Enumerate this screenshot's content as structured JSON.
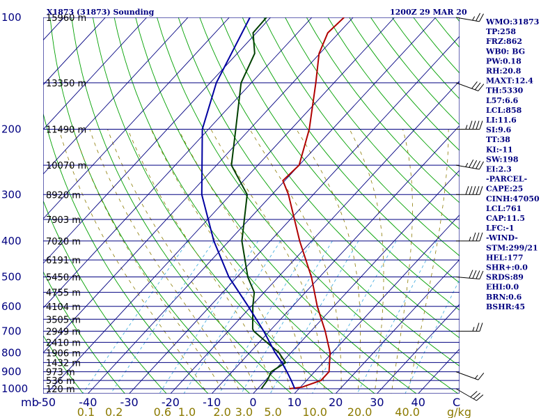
{
  "header": {
    "station": "X1873 (31873) Sounding",
    "time": "1200Z 29 MAR 20"
  },
  "side_panel": [
    "WMO:31873",
    "TP:258",
    "FRZ:862",
    "WB0: BG",
    "PW:0.18",
    "RH:20.8",
    "MAXT:12.4",
    "TH:5330",
    "L57:6.6",
    "LCL:858",
    "LI:11.6",
    "SI:9.6",
    "TT:38",
    "KI:-11",
    "SW:198",
    "EI:2.3",
    "-PARCEL-",
    "CAPE:25",
    "CINH:47050",
    "LCL:761",
    "CAP:11.5",
    "LFC:-1",
    "-WIND-",
    "STM:299/21",
    "HEL:177",
    "SHR+:0.0",
    "SRDS:89",
    "EHI:0.0",
    "BRN:0.6",
    "BSHR:45"
  ],
  "chart_data": {
    "type": "line",
    "chart_kind": "skew-T log-P sounding",
    "pressure_levels": [
      100,
      200,
      300,
      400,
      500,
      600,
      700,
      800,
      900,
      1000
    ],
    "pressure_axis_label": "mb",
    "temperature_ticks": [
      "-50",
      "-40",
      "-30",
      "-20",
      "-10",
      "0",
      "10",
      "20",
      "30",
      "40"
    ],
    "temperature_ticks_values": [
      -50,
      -40,
      -30,
      -20,
      -10,
      0,
      10,
      20,
      30,
      40
    ],
    "mixing_ratio_labels": [
      "0.1",
      "0.2",
      "0.6",
      "1.0",
      "2.0",
      "3.0",
      "5.0",
      "10.0",
      "20.0",
      "40.0"
    ],
    "mixing_ratio_unit": "g/kg",
    "wind_unit_label": "C",
    "heights": [
      {
        "p": 150,
        "label": "13350 m"
      },
      {
        "p": 200,
        "label": "11490 m"
      },
      {
        "p": 250,
        "label": "10070 m"
      },
      {
        "p": 300,
        "label": "8920 m"
      },
      {
        "p": 350,
        "label": "7903 m"
      },
      {
        "p": 400,
        "label": "7020 m"
      },
      {
        "p": 450,
        "label": "6191 m"
      },
      {
        "p": 500,
        "label": "5450 m"
      },
      {
        "p": 550,
        "label": "4755 m"
      },
      {
        "p": 600,
        "label": "4104 m"
      },
      {
        "p": 650,
        "label": "3505 m"
      },
      {
        "p": 700,
        "label": "2949 m"
      },
      {
        "p": 750,
        "label": "2410 m"
      },
      {
        "p": 800,
        "label": "1906 m"
      },
      {
        "p": 850,
        "label": "1432 m"
      },
      {
        "p": 900,
        "label": "973 m"
      },
      {
        "p": 950,
        "label": "536 m"
      },
      {
        "p": 1000,
        "label": "120 m"
      }
    ],
    "top_height_label": "15960 m",
    "series": [
      {
        "kind": "temperature",
        "color": "#b00000",
        "points": [
          {
            "p": 100,
            "t": -62.2
          },
          {
            "p": 110,
            "t": -62.7
          },
          {
            "p": 125,
            "t": -60.2
          },
          {
            "p": 150,
            "t": -54.4
          },
          {
            "p": 200,
            "t": -45.6
          },
          {
            "p": 250,
            "t": -40.0
          },
          {
            "p": 275,
            "t": -40.5
          },
          {
            "p": 300,
            "t": -36.0
          },
          {
            "p": 400,
            "t": -22.9
          },
          {
            "p": 500,
            "t": -12.0
          },
          {
            "p": 600,
            "t": -4.0
          },
          {
            "p": 700,
            "t": 3.5
          },
          {
            "p": 800,
            "t": 9.5
          },
          {
            "p": 900,
            "t": 13.5
          },
          {
            "p": 950,
            "t": 13.5
          },
          {
            "p": 990,
            "t": 10.4
          },
          {
            "p": 1000,
            "t": 7.7
          }
        ]
      },
      {
        "kind": "dewpoint",
        "color": "#004000",
        "points": [
          {
            "p": 100,
            "t": -81.0
          },
          {
            "p": 110,
            "t": -80.8
          },
          {
            "p": 125,
            "t": -75.8
          },
          {
            "p": 150,
            "t": -72.5
          },
          {
            "p": 200,
            "t": -63.4
          },
          {
            "p": 250,
            "t": -56.4
          },
          {
            "p": 300,
            "t": -46.0
          },
          {
            "p": 400,
            "t": -36.9
          },
          {
            "p": 500,
            "t": -27.4
          },
          {
            "p": 550,
            "t": -22.4
          },
          {
            "p": 600,
            "t": -19.6
          },
          {
            "p": 690,
            "t": -14.6
          },
          {
            "p": 700,
            "t": -13.8
          },
          {
            "p": 800,
            "t": -2.9
          },
          {
            "p": 850,
            "t": 0.9
          },
          {
            "p": 900,
            "t": -0.5
          },
          {
            "p": 950,
            "t": 0.5
          },
          {
            "p": 1000,
            "t": 0.9
          }
        ]
      },
      {
        "kind": "parcel",
        "color": "#0000a0",
        "points": [
          {
            "p": 100,
            "t": -85.0
          },
          {
            "p": 150,
            "t": -78.5
          },
          {
            "p": 200,
            "t": -71.5
          },
          {
            "p": 300,
            "t": -57.0
          },
          {
            "p": 400,
            "t": -43.7
          },
          {
            "p": 500,
            "t": -32.0
          },
          {
            "p": 600,
            "t": -20.7
          },
          {
            "p": 700,
            "t": -11.4
          },
          {
            "p": 800,
            "t": -3.8
          },
          {
            "p": 850,
            "t": 0.0
          },
          {
            "p": 900,
            "t": 3.3
          },
          {
            "p": 950,
            "t": 6.3
          },
          {
            "p": 1000,
            "t": 9.0
          }
        ]
      }
    ],
    "wind_barbs": [
      {
        "p": 100,
        "dir": 280,
        "spd": 25
      },
      {
        "p": 150,
        "dir": 290,
        "spd": 30
      },
      {
        "p": 200,
        "dir": 270,
        "spd": 45
      },
      {
        "p": 250,
        "dir": 280,
        "spd": 45
      },
      {
        "p": 300,
        "dir": 270,
        "spd": 50
      },
      {
        "p": 400,
        "dir": 270,
        "spd": 35
      },
      {
        "p": 500,
        "dir": 275,
        "spd": 40
      },
      {
        "p": 700,
        "dir": 270,
        "spd": 25
      },
      {
        "p": 900,
        "dir": 290,
        "spd": 15
      },
      {
        "p": 1000,
        "dir": 300,
        "spd": 30
      }
    ],
    "colors": {
      "frame": "#000080",
      "isobar": "#000080",
      "isotherm": "#000080",
      "dry_adiabat": "#00a000",
      "moist_adiabat": "#8b7a00",
      "mixing_ratio": "#4ab0e0",
      "wind_barb": "#000000"
    }
  }
}
